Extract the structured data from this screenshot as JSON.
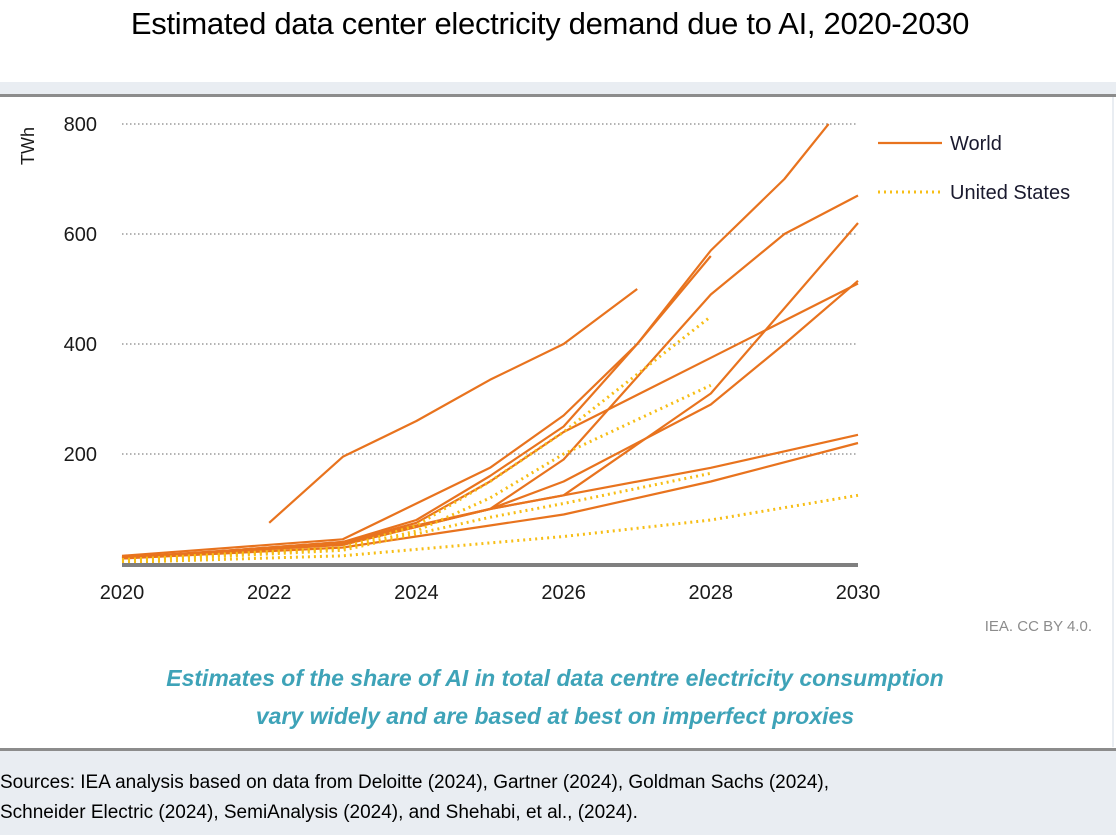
{
  "page": {
    "title": "Estimated data center electricity demand due to AI, 2020-2030",
    "credit": "IEA. CC BY 4.0.",
    "subtitle_line1": "Estimates of the share of AI in total data centre electricity consumption",
    "subtitle_line2": "vary widely and are based at best on imperfect proxies",
    "sources_line1": "Sources: IEA analysis based on data from Deloitte (2024), Gartner (2024), Goldman Sachs (2024),",
    "sources_line2": "Schneider Electric (2024), SemiAnalysis (2024), and Shehabi, et al., (2024)."
  },
  "colors": {
    "world": "#e8731e",
    "united_states": "#f7be16",
    "grid": "#9a9a9a",
    "axis": "#7f7f7f",
    "subtitle": "#3ea3b8"
  },
  "chart_data": {
    "type": "line",
    "title": "Estimated data center electricity demand due to AI, 2020-2030",
    "xlabel": "",
    "ylabel": "TWh",
    "xlim": [
      2020,
      2030
    ],
    "ylim": [
      0,
      800
    ],
    "xticks": [
      "2020",
      "2022",
      "2024",
      "2026",
      "2028",
      "2030"
    ],
    "yticks": [
      "200",
      "400",
      "600",
      "800"
    ],
    "ytick_values": [
      200,
      400,
      600,
      800
    ],
    "xtick_values": [
      2020,
      2022,
      2024,
      2026,
      2028,
      2030
    ],
    "grid": "horizontal dotted",
    "legend": {
      "placement": "top-right",
      "entries": [
        {
          "label": "World",
          "style": "solid",
          "series_group": "world"
        },
        {
          "label": "United States",
          "style": "dotted",
          "series_group": "united_states"
        }
      ]
    },
    "series": [
      {
        "name": "World estimate 1",
        "group": "world",
        "points": [
          [
            2022,
            75
          ],
          [
            2023,
            195
          ],
          [
            2024,
            260
          ],
          [
            2025,
            335
          ],
          [
            2026,
            400
          ],
          [
            2027,
            500
          ]
        ]
      },
      {
        "name": "World estimate 2",
        "group": "world",
        "points": [
          [
            2020,
            15
          ],
          [
            2023,
            45
          ],
          [
            2024,
            110
          ],
          [
            2025,
            175
          ],
          [
            2026,
            270
          ],
          [
            2027,
            400
          ],
          [
            2028,
            570
          ],
          [
            2029,
            700
          ],
          [
            2029.6,
            800
          ]
        ]
      },
      {
        "name": "World estimate 3",
        "group": "world",
        "points": [
          [
            2020,
            10
          ],
          [
            2023,
            40
          ],
          [
            2024,
            80
          ],
          [
            2025,
            160
          ],
          [
            2026,
            250
          ],
          [
            2027,
            400
          ],
          [
            2028,
            560
          ]
        ]
      },
      {
        "name": "World estimate 4",
        "group": "world",
        "points": [
          [
            2020,
            10
          ],
          [
            2023,
            40
          ],
          [
            2025,
            100
          ],
          [
            2026,
            190
          ],
          [
            2027,
            340
          ],
          [
            2028,
            490
          ],
          [
            2029,
            600
          ],
          [
            2030,
            670
          ]
        ]
      },
      {
        "name": "World estimate 5",
        "group": "world",
        "points": [
          [
            2020,
            10
          ],
          [
            2023,
            38
          ],
          [
            2024,
            75
          ],
          [
            2025,
            150
          ],
          [
            2026,
            240
          ],
          [
            2028,
            375
          ],
          [
            2030,
            510
          ]
        ]
      },
      {
        "name": "World estimate 6",
        "group": "world",
        "points": [
          [
            2020,
            12
          ],
          [
            2023,
            35
          ],
          [
            2025,
            100
          ],
          [
            2026,
            150
          ],
          [
            2028,
            290
          ],
          [
            2029,
            400
          ],
          [
            2030,
            515
          ]
        ]
      },
      {
        "name": "World estimate 7",
        "group": "world",
        "points": [
          [
            2020,
            12
          ],
          [
            2023,
            35
          ],
          [
            2025,
            100
          ],
          [
            2026,
            125
          ],
          [
            2028,
            310
          ],
          [
            2030,
            620
          ]
        ]
      },
      {
        "name": "World estimate 8",
        "group": "world",
        "points": [
          [
            2020,
            12
          ],
          [
            2023,
            38
          ],
          [
            2025,
            100
          ],
          [
            2026,
            125
          ],
          [
            2028,
            175
          ],
          [
            2030,
            235
          ]
        ]
      },
      {
        "name": "World estimate 9",
        "group": "world",
        "points": [
          [
            2020,
            10
          ],
          [
            2023,
            30
          ],
          [
            2025,
            70
          ],
          [
            2026,
            90
          ],
          [
            2028,
            150
          ],
          [
            2030,
            220
          ]
        ]
      },
      {
        "name": "United States estimate 1",
        "group": "united_states",
        "points": [
          [
            2020,
            8
          ],
          [
            2023,
            30
          ],
          [
            2024,
            70
          ],
          [
            2025,
            150
          ],
          [
            2026,
            240
          ],
          [
            2028,
            450
          ]
        ]
      },
      {
        "name": "United States estimate 2",
        "group": "united_states",
        "points": [
          [
            2020,
            6
          ],
          [
            2023,
            28
          ],
          [
            2024,
            60
          ],
          [
            2025,
            120
          ],
          [
            2026,
            200
          ],
          [
            2028,
            325
          ]
        ]
      },
      {
        "name": "United States estimate 3",
        "group": "united_states",
        "points": [
          [
            2020,
            5
          ],
          [
            2023,
            25
          ],
          [
            2025,
            85
          ],
          [
            2026,
            110
          ],
          [
            2028,
            165
          ]
        ]
      },
      {
        "name": "United States estimate 4",
        "group": "united_states",
        "points": [
          [
            2020,
            3
          ],
          [
            2023,
            15
          ],
          [
            2026,
            50
          ],
          [
            2028,
            80
          ],
          [
            2030,
            125
          ]
        ]
      }
    ]
  }
}
